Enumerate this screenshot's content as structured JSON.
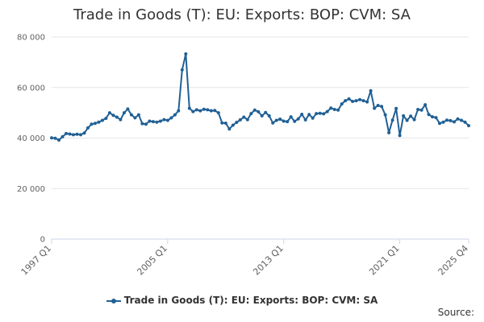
{
  "chart_data": {
    "type": "line",
    "title": "Trade in Goods (T): EU: Exports: BOP: CVM: SA",
    "xlabel": "",
    "ylabel": "",
    "ylim": [
      0,
      80000
    ],
    "y_ticks": [
      {
        "value": 0,
        "label": "0"
      },
      {
        "value": 20000,
        "label": "20 000"
      },
      {
        "value": 40000,
        "label": "40 000"
      },
      {
        "value": 60000,
        "label": "60 000"
      },
      {
        "value": 80000,
        "label": "80 000"
      }
    ],
    "x_ticks": [
      {
        "index": 0,
        "label": "1997 Q1"
      },
      {
        "index": 32,
        "label": "2005 Q1"
      },
      {
        "index": 64,
        "label": "2013 Q1"
      },
      {
        "index": 96,
        "label": "2021 Q1"
      },
      {
        "index": 115,
        "label": "2025 Q4"
      }
    ],
    "grid": true,
    "legend_position": "bottom",
    "color": "#206095",
    "series": [
      {
        "name": "Trade in Goods (T): EU: Exports: BOP: CVM: SA",
        "x": [
          "1997 Q1",
          "1997 Q2",
          "1997 Q3",
          "1997 Q4",
          "1998 Q1",
          "1998 Q2",
          "1998 Q3",
          "1998 Q4",
          "1999 Q1",
          "1999 Q2",
          "1999 Q3",
          "1999 Q4",
          "2000 Q1",
          "2000 Q2",
          "2000 Q3",
          "2000 Q4",
          "2001 Q1",
          "2001 Q2",
          "2001 Q3",
          "2001 Q4",
          "2002 Q1",
          "2002 Q2",
          "2002 Q3",
          "2002 Q4",
          "2003 Q1",
          "2003 Q2",
          "2003 Q3",
          "2003 Q4",
          "2004 Q1",
          "2004 Q2",
          "2004 Q3",
          "2004 Q4",
          "2005 Q1",
          "2005 Q2",
          "2005 Q3",
          "2005 Q4",
          "2006 Q1",
          "2006 Q2",
          "2006 Q3",
          "2006 Q4",
          "2007 Q1",
          "2007 Q2",
          "2007 Q3",
          "2007 Q4",
          "2008 Q1",
          "2008 Q2",
          "2008 Q3",
          "2008 Q4",
          "2009 Q1",
          "2009 Q2",
          "2009 Q3",
          "2009 Q4",
          "2010 Q1",
          "2010 Q2",
          "2010 Q3",
          "2010 Q4",
          "2011 Q1",
          "2011 Q2",
          "2011 Q3",
          "2011 Q4",
          "2012 Q1",
          "2012 Q2",
          "2012 Q3",
          "2012 Q4",
          "2013 Q1",
          "2013 Q2",
          "2013 Q3",
          "2013 Q4",
          "2014 Q1",
          "2014 Q2",
          "2014 Q3",
          "2014 Q4",
          "2015 Q1",
          "2015 Q2",
          "2015 Q3",
          "2015 Q4",
          "2016 Q1",
          "2016 Q2",
          "2016 Q3",
          "2016 Q4",
          "2017 Q1",
          "2017 Q2",
          "2017 Q3",
          "2017 Q4",
          "2018 Q1",
          "2018 Q2",
          "2018 Q3",
          "2018 Q4",
          "2019 Q1",
          "2019 Q2",
          "2019 Q3",
          "2019 Q4",
          "2020 Q1",
          "2020 Q2",
          "2020 Q3",
          "2020 Q4",
          "2021 Q1",
          "2021 Q2",
          "2021 Q3",
          "2021 Q4",
          "2022 Q1",
          "2022 Q2",
          "2022 Q3",
          "2022 Q4",
          "2023 Q1",
          "2023 Q2",
          "2023 Q3",
          "2023 Q4",
          "2024 Q1",
          "2024 Q2",
          "2024 Q3",
          "2024 Q4",
          "2025 Q1",
          "2025 Q2",
          "2025 Q3",
          "2025 Q4"
        ],
        "values": [
          40100,
          39900,
          39200,
          40500,
          41800,
          41600,
          41300,
          41500,
          41300,
          42000,
          44000,
          45500,
          45800,
          46300,
          47000,
          47800,
          50000,
          49000,
          48300,
          47300,
          50000,
          51500,
          49200,
          48000,
          49200,
          45700,
          45500,
          46700,
          46500,
          46300,
          46700,
          47300,
          47000,
          48000,
          49200,
          50800,
          67000,
          73300,
          51800,
          50500,
          51200,
          50800,
          51400,
          51200,
          50800,
          50900,
          50000,
          46000,
          45900,
          43600,
          45100,
          46200,
          47200,
          48300,
          47300,
          49700,
          51100,
          50400,
          48800,
          50100,
          48800,
          46000,
          47000,
          47500,
          46700,
          46500,
          48400,
          46600,
          47600,
          49400,
          47200,
          49300,
          47900,
          49700,
          49800,
          49600,
          50500,
          51900,
          51300,
          51100,
          53500,
          54800,
          55500,
          54500,
          54800,
          55200,
          54800,
          54300,
          58700,
          51800,
          52900,
          52500,
          49200,
          42100,
          47100,
          51700,
          41000,
          48800,
          47000,
          48700,
          47300,
          51300,
          51100,
          53200,
          49300,
          48400,
          48100,
          45800,
          46300,
          47100,
          46900,
          46400,
          47600,
          47000,
          46300,
          44900
        ]
      }
    ]
  },
  "legend": {
    "label": "Trade in Goods (T): EU: Exports: BOP: CVM: SA"
  },
  "source": {
    "label": "Source:"
  }
}
